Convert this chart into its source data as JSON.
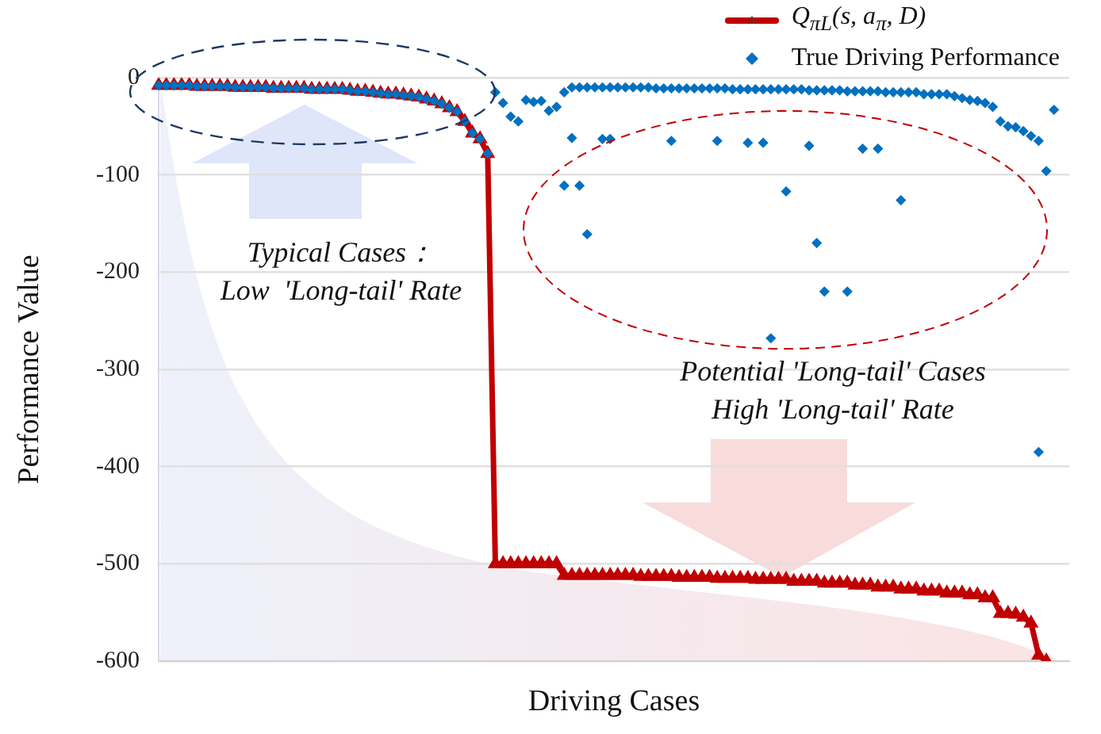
{
  "chart_data": {
    "type": "line",
    "xlabel": "Driving Cases",
    "ylabel": "Performance Value",
    "categories": [
      null,
      null,
      null,
      null,
      null,
      null,
      null,
      null,
      null,
      null,
      null,
      null,
      null,
      null,
      null,
      null,
      null,
      null,
      null,
      null,
      null,
      null,
      null,
      null,
      null,
      null,
      null,
      null,
      null,
      null,
      null,
      null,
      null,
      null,
      null,
      null,
      null,
      null,
      null,
      null,
      null,
      null,
      null,
      null,
      null,
      null,
      null,
      null,
      null,
      null,
      null,
      null,
      null,
      null,
      null,
      null,
      null,
      null,
      null,
      null,
      null,
      null,
      null,
      null,
      null,
      null,
      null,
      null,
      null,
      null,
      null,
      null,
      null,
      null,
      null,
      null,
      null,
      null,
      null,
      null,
      null,
      null,
      null,
      null,
      null,
      null,
      null,
      null,
      null,
      null,
      null,
      null,
      null,
      null,
      null,
      null,
      null,
      null,
      null,
      null,
      null,
      null,
      null,
      null,
      null,
      null,
      null,
      null,
      null,
      null,
      null,
      null,
      null,
      null,
      null,
      null,
      null,
      null,
      null,
      null
    ],
    "ylim": [
      -600,
      0
    ],
    "yticks": [
      -600,
      -500,
      -400,
      -300,
      -200,
      -100,
      0
    ],
    "tick_labels": "y",
    "grid": "y",
    "legend": "top right",
    "annotations": [
      "Typical Cases：\nLow  'Long-tail' Rate",
      "Potential 'Long-tail' Cases\nHigh 'Long-tail' Rate"
    ],
    "series": [
      {
        "name": "Q$_{πL}$(s, a$_{π}$, D)",
        "color": "#c00000",
        "marker": "triangle",
        "line_style": "solid",
        "values": [
          -8,
          -8,
          -8,
          -8,
          -8,
          -9,
          -9,
          -9,
          -9,
          -9,
          -10,
          -10,
          -10,
          -10,
          -10,
          -11,
          -11,
          -11,
          -11,
          -11,
          -12,
          -12,
          -12,
          -12,
          -12,
          -13,
          -14,
          -14,
          -15,
          -16,
          -17,
          -17,
          -18,
          -19,
          -20,
          -22,
          -24,
          -27,
          -31,
          -35,
          -45,
          -57,
          -63,
          -78,
          -500,
          -500,
          -500,
          -500,
          -500,
          -500,
          -500,
          -500,
          -500,
          -512,
          -512,
          -512,
          -512,
          -512,
          -512,
          -512,
          -512,
          -512,
          -512,
          -513,
          -513,
          -513,
          -513,
          -513,
          -514,
          -514,
          -514,
          -514,
          -514,
          -515,
          -515,
          -515,
          -515,
          -515,
          -516,
          -516,
          -516,
          -516,
          -516,
          -518,
          -518,
          -518,
          -518,
          -520,
          -520,
          -520,
          -520,
          -522,
          -522,
          -522,
          -524,
          -524,
          -524,
          -526,
          -526,
          -526,
          -528,
          -528,
          -528,
          -530,
          -530,
          -530,
          -532,
          -532,
          -535,
          -535,
          -551,
          -551,
          -552,
          -555,
          -561,
          -594,
          -600,
          null,
          null,
          null
        ]
      },
      {
        "name": "True Driving Performance",
        "type": "scatter",
        "color": "#0070c0",
        "marker": "diamond",
        "values": [
          -8,
          -8,
          -8,
          -8,
          -8,
          -9,
          -9,
          -9,
          -9,
          -9,
          -10,
          -10,
          -10,
          -10,
          -10,
          -11,
          -11,
          -11,
          -11,
          -11,
          -12,
          -12,
          -12,
          -12,
          -12,
          -13,
          -14,
          -14,
          -15,
          -16,
          -17,
          -17,
          -18,
          -19,
          -20,
          -22,
          -24,
          -27,
          -31,
          -35,
          -45,
          -57,
          -63,
          -78,
          -15,
          -26,
          -40,
          -45,
          -23,
          -25,
          -24,
          -34,
          -30,
          -15,
          -10,
          -10,
          -10,
          -10,
          -10,
          -10,
          -10,
          -10,
          -10,
          -10,
          -10,
          -11,
          -11,
          -11,
          -11,
          -11,
          -11,
          -11,
          -11,
          -11,
          -11,
          -12,
          -12,
          -12,
          -12,
          -12,
          -12,
          -12,
          -12,
          -12,
          -12,
          -13,
          -13,
          -13,
          -13,
          -13,
          -14,
          -14,
          -14,
          -14,
          -14,
          -15,
          -15,
          -15,
          -15,
          -15,
          -17,
          -17,
          -17,
          -17,
          -19,
          -21,
          -23,
          -24,
          -26,
          -30,
          -45,
          -50,
          -51,
          -55,
          -60,
          -65,
          null,
          null,
          null,
          null
        ]
      },
      {
        "type": "scatter",
        "color": "#0070c0",
        "marker": "diamond",
        "values": [
          null,
          null,
          null,
          null,
          null,
          null,
          null,
          null,
          null,
          null,
          null,
          null,
          null,
          null,
          null,
          null,
          null,
          null,
          null,
          null,
          null,
          null,
          null,
          null,
          null,
          null,
          null,
          null,
          null,
          null,
          null,
          null,
          null,
          null,
          null,
          null,
          null,
          null,
          null,
          null,
          null,
          null,
          null,
          null,
          null,
          null,
          null,
          null,
          null,
          null,
          null,
          null,
          null,
          -111,
          -62,
          -111,
          -161,
          null,
          -63,
          -63,
          null,
          null,
          null,
          null,
          null,
          null,
          null,
          -65,
          null,
          null,
          null,
          null,
          null,
          -65,
          null,
          null,
          null,
          -67,
          null,
          -67,
          -268,
          null,
          -117,
          null,
          null,
          -70,
          -170,
          -220,
          null,
          null,
          -220,
          null,
          -73,
          null,
          -73,
          null,
          null,
          -126,
          null,
          null,
          null,
          null,
          null,
          null,
          null,
          null,
          null,
          null,
          null,
          null,
          null,
          null,
          null,
          null,
          null,
          -385,
          -96,
          -33,
          null,
          null
        ]
      }
    ]
  }
}
